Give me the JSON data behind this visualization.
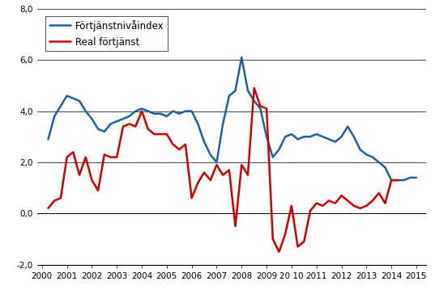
{
  "blue_label": "Förtjänstnivåindex",
  "red_label": "Real förtjänst",
  "blue_color": "#1f5fa6",
  "red_color": "#cc0000",
  "ylim": [
    -2.0,
    8.0
  ],
  "yticks": [
    -2.0,
    0.0,
    2.0,
    4.0,
    6.0,
    8.0
  ],
  "ytick_labels": [
    "-2,0",
    "0,0",
    "2,0",
    "4,0",
    "6,0",
    "8,0"
  ],
  "xtick_positions": [
    2000,
    2001,
    2002,
    2003,
    2004,
    2005,
    2006,
    2007,
    2008,
    2009,
    2010,
    2011,
    2012,
    2013,
    2014,
    2015
  ],
  "xtick_labels": [
    "2000",
    "2001",
    "2002",
    "2003",
    "2004",
    "2005",
    "2006",
    "2007",
    "2008",
    "2009",
    "20 10",
    "2011",
    "2012",
    "2013",
    "2014",
    "2015"
  ],
  "xlim": [
    1999.8,
    2015.4
  ],
  "blue_x": [
    2000.25,
    2000.5,
    2000.75,
    2001.0,
    2001.25,
    2001.5,
    2001.75,
    2002.0,
    2002.25,
    2002.5,
    2002.75,
    2003.0,
    2003.25,
    2003.5,
    2003.75,
    2004.0,
    2004.25,
    2004.5,
    2004.75,
    2005.0,
    2005.25,
    2005.5,
    2005.75,
    2006.0,
    2006.25,
    2006.5,
    2006.75,
    2007.0,
    2007.25,
    2007.5,
    2007.75,
    2008.0,
    2008.25,
    2008.5,
    2008.75,
    2009.0,
    2009.25,
    2009.5,
    2009.75,
    2010.0,
    2010.25,
    2010.5,
    2010.75,
    2011.0,
    2011.25,
    2011.5,
    2011.75,
    2012.0,
    2012.25,
    2012.5,
    2012.75,
    2013.0,
    2013.25,
    2013.5,
    2013.75,
    2014.0,
    2014.25,
    2014.5,
    2014.75,
    2015.0
  ],
  "blue_y": [
    2.9,
    3.8,
    4.2,
    4.6,
    4.5,
    4.4,
    4.0,
    3.7,
    3.3,
    3.2,
    3.5,
    3.6,
    3.7,
    3.8,
    4.0,
    4.1,
    4.0,
    3.9,
    3.9,
    3.8,
    4.0,
    3.9,
    4.0,
    4.0,
    3.5,
    2.8,
    2.3,
    2.0,
    3.5,
    4.6,
    4.8,
    6.1,
    4.8,
    4.4,
    4.1,
    3.0,
    2.2,
    2.5,
    3.0,
    3.1,
    2.9,
    3.0,
    3.0,
    3.1,
    3.0,
    2.9,
    2.8,
    3.0,
    3.4,
    3.0,
    2.5,
    2.3,
    2.2,
    2.0,
    1.8,
    1.3,
    1.3,
    1.3,
    1.4,
    1.4
  ],
  "red_x": [
    2000.25,
    2000.5,
    2000.75,
    2001.0,
    2001.25,
    2001.5,
    2001.75,
    2002.0,
    2002.25,
    2002.5,
    2002.75,
    2003.0,
    2003.25,
    2003.5,
    2003.75,
    2004.0,
    2004.25,
    2004.5,
    2004.75,
    2005.0,
    2005.25,
    2005.5,
    2005.75,
    2006.0,
    2006.25,
    2006.5,
    2006.75,
    2007.0,
    2007.25,
    2007.5,
    2007.75,
    2008.0,
    2008.25,
    2008.5,
    2008.75,
    2009.0,
    2009.25,
    2009.5,
    2009.75,
    2010.0,
    2010.25,
    2010.5,
    2010.75,
    2011.0,
    2011.25,
    2011.5,
    2011.75,
    2012.0,
    2012.25,
    2012.5,
    2012.75,
    2013.0,
    2013.25,
    2013.5,
    2013.75,
    2014.0,
    2014.25
  ],
  "red_y": [
    0.2,
    0.5,
    0.6,
    2.2,
    2.4,
    1.5,
    2.2,
    1.3,
    0.9,
    2.3,
    2.2,
    2.2,
    3.4,
    3.5,
    3.4,
    4.0,
    3.3,
    3.1,
    3.1,
    3.1,
    2.7,
    2.5,
    2.7,
    0.6,
    1.2,
    1.6,
    1.3,
    1.9,
    1.5,
    1.7,
    -0.5,
    1.9,
    1.5,
    4.9,
    4.2,
    4.1,
    -1.0,
    -1.5,
    -0.8,
    0.3,
    -1.3,
    -1.1,
    0.1,
    0.4,
    0.3,
    0.5,
    0.4,
    0.7,
    0.5,
    0.3,
    0.2,
    0.3,
    0.5,
    0.8,
    0.4,
    1.3,
    1.3
  ],
  "background_color": "#ffffff",
  "grid_color": "#000000",
  "linewidth_blue": 1.8,
  "linewidth_red": 1.8,
  "tick_fontsize": 7.5,
  "legend_fontsize": 8.5
}
